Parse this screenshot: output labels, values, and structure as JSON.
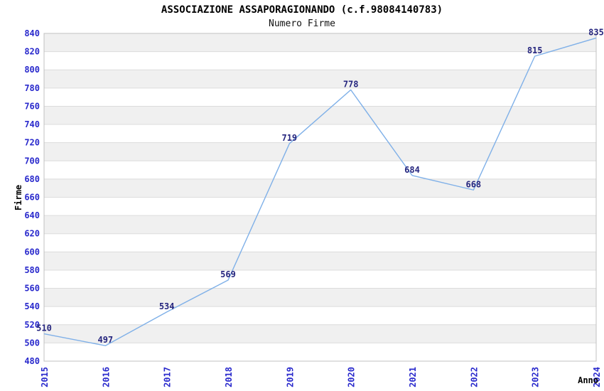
{
  "header": {
    "title": "ASSOCIAZIONE ASSAPORAGIONANDO (c.f.98084140783)",
    "subtitle": "Numero Firme"
  },
  "chart_data": {
    "type": "line",
    "title": "ASSOCIAZIONE ASSAPORAGIONANDO (c.f.98084140783)",
    "subtitle": "Numero Firme",
    "xlabel": "Anno",
    "ylabel": "Firme",
    "x": [
      "2015",
      "2016",
      "2017",
      "2018",
      "2019",
      "2020",
      "2021",
      "2022",
      "2023",
      "2024"
    ],
    "series": [
      {
        "name": "Numero Firme",
        "values": [
          510,
          497,
          534,
          569,
          719,
          778,
          684,
          668,
          815,
          835
        ]
      }
    ],
    "ylim": [
      480,
      840
    ],
    "ytick_step": 20,
    "grid": true,
    "banded_background": true,
    "legend_position": "none",
    "point_labels_visible": true,
    "colors": {
      "line": "#7FB0E8",
      "tick_label": "#2828CC",
      "value_label": "#26267F",
      "band": "#F0F0F0",
      "grid_line": "#DCDCDC",
      "border": "#C0C0C0",
      "title_text": "#000000"
    }
  }
}
